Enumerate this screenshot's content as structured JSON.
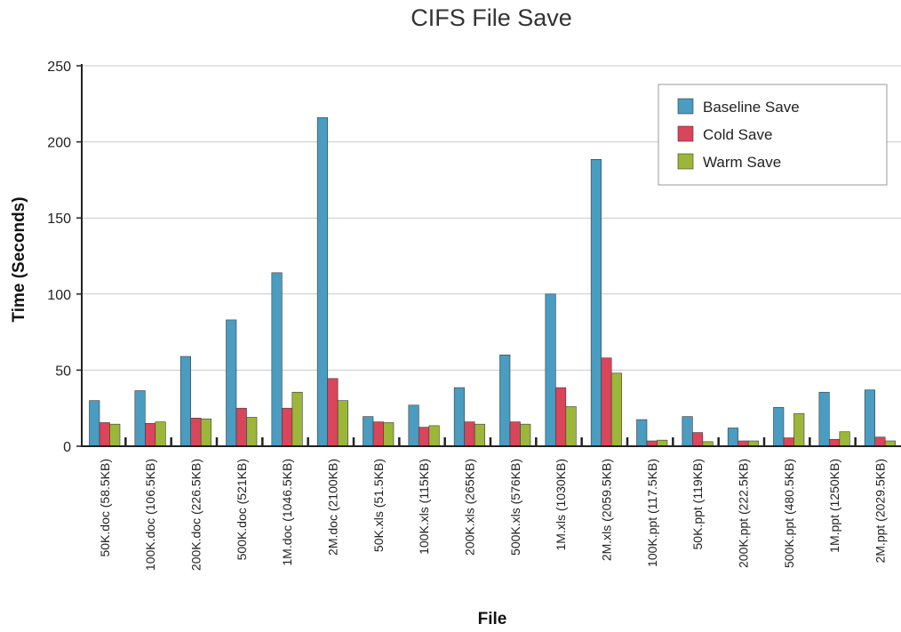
{
  "colors": {
    "baseline": "#4a9cc0",
    "cold": "#d9455a",
    "warm": "#9cb63a",
    "grid": "#c8c8c8",
    "axis": "#222222"
  },
  "chart_data": {
    "type": "bar",
    "title": "CIFS File Save",
    "xlabel": "File",
    "ylabel": "Time (Seconds)",
    "ylim": [
      0,
      250
    ],
    "yticks": [
      0,
      50,
      100,
      150,
      200,
      250
    ],
    "grid": true,
    "legend_position": "top-right",
    "categories": [
      "50K.doc (58.5KB)",
      "100K.doc (106.5KB)",
      "200K.doc (226.5KB)",
      "500K.doc (521KB)",
      "1M.doc (1046.5KB)",
      "2M.doc (2100KB)",
      "50K.xls (51.5KB)",
      "100K.xls (115KB)",
      "200K.xls (265KB)",
      "500K.xls (576KB)",
      "1M.xls (1030KB)",
      "2M.xls (2059.5KB)",
      "100K.ppt (117.5KB)",
      "50K.ppt (119KB)",
      "200K.ppt (222.5KB)",
      "500K.ppt (480.5KB)",
      "1M.ppt (1250KB)",
      "2M.ppt (2029.5KB)"
    ],
    "series": [
      {
        "name": "Baseline Save",
        "color_key": "baseline",
        "values": [
          30,
          36.5,
          59,
          83,
          114,
          216,
          19.5,
          27,
          38.5,
          60,
          100,
          188.5,
          17.5,
          19.5,
          12,
          25.5,
          35.5,
          37
        ]
      },
      {
        "name": "Cold Save",
        "color_key": "cold",
        "values": [
          15.5,
          15,
          18.5,
          25,
          25,
          44.5,
          16,
          12.5,
          16,
          16,
          38.5,
          58,
          3.5,
          9,
          3.5,
          5.5,
          4.5,
          6
        ]
      },
      {
        "name": "Warm Save",
        "color_key": "warm",
        "values": [
          14.5,
          16,
          18,
          19,
          35.5,
          30,
          15.5,
          13.5,
          14.5,
          14.5,
          26,
          48,
          4,
          3,
          3.5,
          21.5,
          9.5,
          3.5
        ]
      }
    ]
  }
}
